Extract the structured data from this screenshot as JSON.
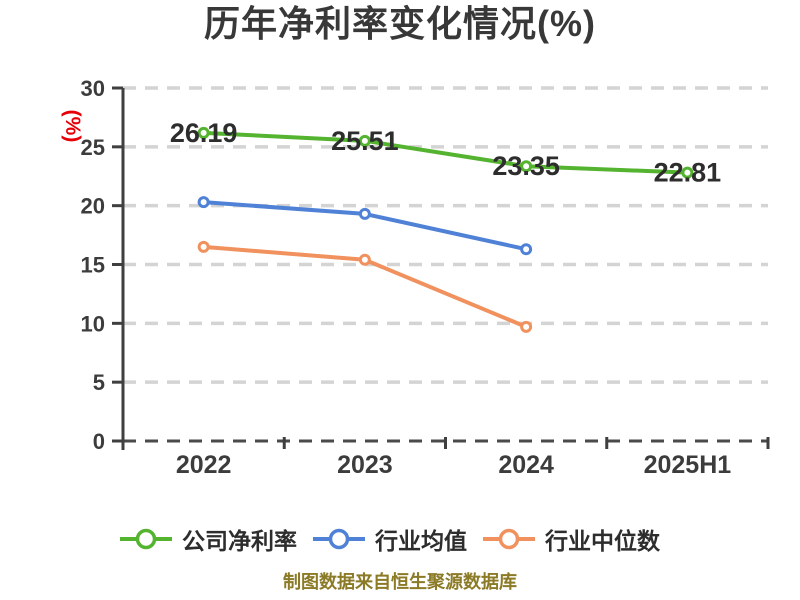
{
  "title": "历年净利率变化情况(%)",
  "footer": {
    "text": "制图数据来自恒生聚源数据库",
    "color": "#8b7a26"
  },
  "colors": {
    "title_text": "#383838",
    "tick_text": "#3c3c3c",
    "axis": "#3f3f3f",
    "gridline": "#d4d4d4",
    "baseline": "#4a4a4a",
    "y_axis_label": "#e60008",
    "footer_text": "#8b7a26",
    "series_company": "#54b32f",
    "series_industry_avg": "#4f82d6",
    "series_industry_median": "#f0915e",
    "background": "#ffffff"
  },
  "chart_data": {
    "type": "line",
    "title": "历年净利率变化情况(%)",
    "ylabel": "(%)",
    "xlabel": "",
    "categories": [
      "2022",
      "2023",
      "2024",
      "2025H1"
    ],
    "series": [
      {
        "key": "company-net-margin",
        "name": "公司净利率",
        "color": "#54b32f",
        "values": [
          26.19,
          25.51,
          23.35,
          22.81
        ],
        "point_labels": [
          "26.19",
          "25.51",
          "23.35",
          "22.81"
        ]
      },
      {
        "key": "industry-average",
        "name": "行业均值",
        "color": "#4f82d6",
        "values": [
          20.3,
          19.3,
          16.3,
          null
        ]
      },
      {
        "key": "industry-median",
        "name": "行业中位数",
        "color": "#f0915e",
        "values": [
          16.5,
          15.4,
          9.7,
          null
        ]
      }
    ],
    "ylim": [
      0,
      30
    ],
    "yticks": [
      0,
      5,
      10,
      15,
      20,
      25,
      30
    ],
    "grid": "horizontal-dashed",
    "marker": "circle-white-fill",
    "legend_position": "bottom"
  }
}
